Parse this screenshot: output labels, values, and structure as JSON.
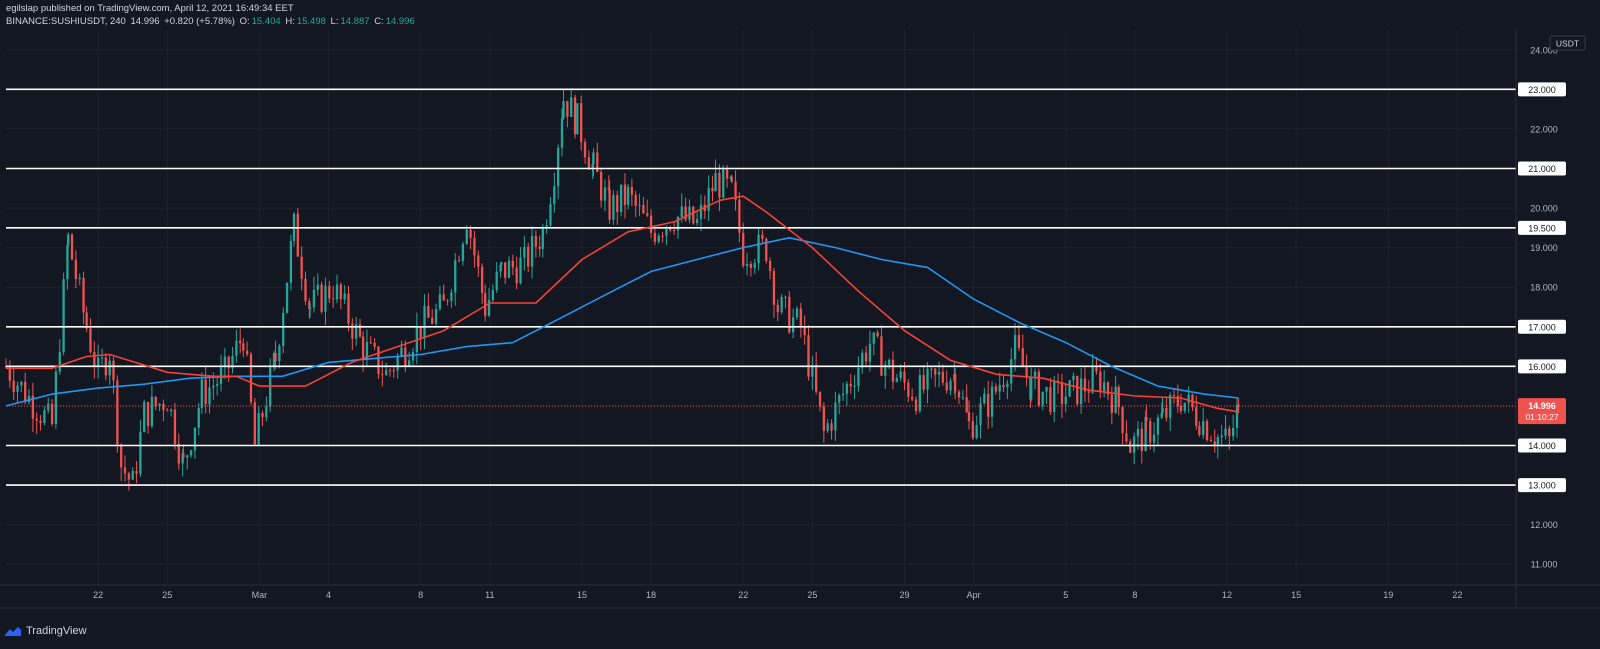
{
  "header": {
    "publisher_line": "egilslap published on TradingView.com, April 12, 2021 16:49:34 EET",
    "symbol": "BINANCE:SUSHIUSDT, 240",
    "last": "14.996",
    "change": "+0.820 (+5.78%)",
    "o_label": "O:",
    "o_value": "15.404",
    "h_label": "H:",
    "h_value": "15.498",
    "l_label": "L:",
    "l_value": "14.887",
    "c_label": "C:",
    "c_value": "14.996"
  },
  "price_scale": {
    "currency": "USDT",
    "current_price": "14.996",
    "countdown": "01:10:27"
  },
  "footer": {
    "brand": "TradingView"
  },
  "colors": {
    "background": "#131722",
    "up": "#26a69a",
    "down": "#ef5350",
    "ema_fast": "#f44336",
    "ema_slow": "#2196f3",
    "level_lines": "#ffffff",
    "grid": "#1e222d"
  },
  "chart_data": {
    "type": "candlestick",
    "symbol": "BINANCE:SUSHIUSDT",
    "interval": "240",
    "ylim": [
      10.5,
      24.5
    ],
    "y_ticks": [
      "11.000",
      "12.000",
      "13.000",
      "14.000",
      "15.000",
      "16.000",
      "17.000",
      "18.000",
      "19.000",
      "20.000",
      "21.000",
      "22.000",
      "23.000",
      "24.000"
    ],
    "x_ticks": [
      {
        "label": "22",
        "day": -7
      },
      {
        "label": "25",
        "day": -4
      },
      {
        "label": "Mar",
        "day": 0
      },
      {
        "label": "4",
        "day": 3
      },
      {
        "label": "8",
        "day": 7
      },
      {
        "label": "11",
        "day": 10
      },
      {
        "label": "15",
        "day": 14
      },
      {
        "label": "18",
        "day": 17
      },
      {
        "label": "22",
        "day": 21
      },
      {
        "label": "25",
        "day": 24
      },
      {
        "label": "29",
        "day": 28
      },
      {
        "label": "Apr",
        "day": 31
      },
      {
        "label": "5",
        "day": 35
      },
      {
        "label": "8",
        "day": 38
      },
      {
        "label": "12",
        "day": 42
      },
      {
        "label": "15",
        "day": 45
      },
      {
        "label": "19",
        "day": 49
      },
      {
        "label": "22",
        "day": 52
      }
    ],
    "xlim_days": [
      -11,
      54.5
    ],
    "horizontal_levels": [
      {
        "value": 23.0,
        "label": "23.000"
      },
      {
        "value": 21.0,
        "label": "21.000"
      },
      {
        "value": 19.5,
        "label": "19.500"
      },
      {
        "value": 17.0,
        "label": "17.000"
      },
      {
        "value": 16.0,
        "label": "16.000"
      },
      {
        "value": 14.0,
        "label": "14.000"
      },
      {
        "value": 13.0,
        "label": "13.000"
      }
    ],
    "current_price": 14.996,
    "price_path_anchors": [
      {
        "day": -11,
        "close": 16.0
      },
      {
        "day": -10,
        "close": 15.2
      },
      {
        "day": -9,
        "close": 14.5
      },
      {
        "day": -8.3,
        "close": 19.2
      },
      {
        "day": -7.5,
        "close": 17.0
      },
      {
        "day": -7,
        "close": 15.8
      },
      {
        "day": -6.5,
        "close": 16.4
      },
      {
        "day": -6,
        "close": 13.5
      },
      {
        "day": -5.5,
        "close": 13.0
      },
      {
        "day": -5,
        "close": 14.8
      },
      {
        "day": -4,
        "close": 15.2
      },
      {
        "day": -3.3,
        "close": 13.5
      },
      {
        "day": -2.5,
        "close": 15.3
      },
      {
        "day": -1.5,
        "close": 15.8
      },
      {
        "day": -0.7,
        "close": 16.8
      },
      {
        "day": -0.2,
        "close": 14.0
      },
      {
        "day": 0.7,
        "close": 16.2
      },
      {
        "day": 1.5,
        "close": 19.5
      },
      {
        "day": 2.2,
        "close": 17.5
      },
      {
        "day": 3.2,
        "close": 18.0
      },
      {
        "day": 4.5,
        "close": 16.5
      },
      {
        "day": 5.5,
        "close": 15.8
      },
      {
        "day": 7,
        "close": 17.0
      },
      {
        "day": 8,
        "close": 17.5
      },
      {
        "day": 9,
        "close": 19.8
      },
      {
        "day": 9.8,
        "close": 17.5
      },
      {
        "day": 10.5,
        "close": 18.4
      },
      {
        "day": 11.5,
        "close": 18.6
      },
      {
        "day": 12.3,
        "close": 19.4
      },
      {
        "day": 12.8,
        "close": 21.0
      },
      {
        "day": 13.2,
        "close": 22.8
      },
      {
        "day": 13.8,
        "close": 22.2
      },
      {
        "day": 14.5,
        "close": 21.0
      },
      {
        "day": 15.2,
        "close": 20.0
      },
      {
        "day": 16,
        "close": 20.3
      },
      {
        "day": 17,
        "close": 19.4
      },
      {
        "day": 18,
        "close": 19.8
      },
      {
        "day": 19,
        "close": 19.6
      },
      {
        "day": 19.8,
        "close": 20.7
      },
      {
        "day": 20.5,
        "close": 20.4
      },
      {
        "day": 21,
        "close": 18.9
      },
      {
        "day": 22,
        "close": 19.0
      },
      {
        "day": 22.5,
        "close": 17.5
      },
      {
        "day": 23.5,
        "close": 17.0
      },
      {
        "day": 24.5,
        "close": 14.3
      },
      {
        "day": 25.5,
        "close": 15.5
      },
      {
        "day": 26.5,
        "close": 16.6
      },
      {
        "day": 27.5,
        "close": 15.8
      },
      {
        "day": 28.5,
        "close": 15.3
      },
      {
        "day": 29.5,
        "close": 15.7
      },
      {
        "day": 30.2,
        "close": 15.8
      },
      {
        "day": 30.8,
        "close": 14.5
      },
      {
        "day": 31.8,
        "close": 15.2
      },
      {
        "day": 32.8,
        "close": 16.4
      },
      {
        "day": 33.5,
        "close": 15.5
      },
      {
        "day": 34.5,
        "close": 15.2
      },
      {
        "day": 35.5,
        "close": 15.4
      },
      {
        "day": 36.5,
        "close": 15.7
      },
      {
        "day": 37.3,
        "close": 15.0
      },
      {
        "day": 37.8,
        "close": 14.0
      },
      {
        "day": 38.5,
        "close": 14.3
      },
      {
        "day": 39.2,
        "close": 14.7
      },
      {
        "day": 40,
        "close": 15.2
      },
      {
        "day": 40.8,
        "close": 14.7
      },
      {
        "day": 41.6,
        "close": 14.2
      },
      {
        "day": 42.1,
        "close": 14.1
      },
      {
        "day": 42.5,
        "close": 14.996
      }
    ],
    "ema_fast_points": [
      {
        "day": -11,
        "value": 15.95
      },
      {
        "day": -9,
        "value": 15.95
      },
      {
        "day": -7.5,
        "value": 16.25
      },
      {
        "day": -6.5,
        "value": 16.3
      },
      {
        "day": -4,
        "value": 15.85
      },
      {
        "day": -2,
        "value": 15.75
      },
      {
        "day": -1,
        "value": 15.75
      },
      {
        "day": 0,
        "value": 15.5
      },
      {
        "day": 2,
        "value": 15.5
      },
      {
        "day": 4,
        "value": 16.1
      },
      {
        "day": 6,
        "value": 16.5
      },
      {
        "day": 8,
        "value": 16.9
      },
      {
        "day": 10,
        "value": 17.6
      },
      {
        "day": 12,
        "value": 17.6
      },
      {
        "day": 14,
        "value": 18.7
      },
      {
        "day": 16,
        "value": 19.4
      },
      {
        "day": 18,
        "value": 19.65
      },
      {
        "day": 20,
        "value": 20.2
      },
      {
        "day": 21,
        "value": 20.3
      },
      {
        "day": 22,
        "value": 19.9
      },
      {
        "day": 24,
        "value": 19.0
      },
      {
        "day": 26,
        "value": 17.9
      },
      {
        "day": 28,
        "value": 16.9
      },
      {
        "day": 30,
        "value": 16.15
      },
      {
        "day": 32,
        "value": 15.8
      },
      {
        "day": 34,
        "value": 15.7
      },
      {
        "day": 36,
        "value": 15.4
      },
      {
        "day": 38,
        "value": 15.25
      },
      {
        "day": 40,
        "value": 15.2
      },
      {
        "day": 41.5,
        "value": 14.95
      },
      {
        "day": 42.5,
        "value": 14.85
      }
    ],
    "ema_slow_points": [
      {
        "day": -11,
        "value": 15.0
      },
      {
        "day": -9,
        "value": 15.3
      },
      {
        "day": -7,
        "value": 15.45
      },
      {
        "day": -5,
        "value": 15.55
      },
      {
        "day": -3,
        "value": 15.7
      },
      {
        "day": -1,
        "value": 15.75
      },
      {
        "day": 1,
        "value": 15.75
      },
      {
        "day": 3,
        "value": 16.1
      },
      {
        "day": 5,
        "value": 16.2
      },
      {
        "day": 7,
        "value": 16.3
      },
      {
        "day": 9,
        "value": 16.5
      },
      {
        "day": 11,
        "value": 16.6
      },
      {
        "day": 13,
        "value": 17.2
      },
      {
        "day": 15,
        "value": 17.8
      },
      {
        "day": 17,
        "value": 18.4
      },
      {
        "day": 19,
        "value": 18.7
      },
      {
        "day": 21,
        "value": 19.0
      },
      {
        "day": 23,
        "value": 19.25
      },
      {
        "day": 25,
        "value": 19.0
      },
      {
        "day": 27,
        "value": 18.7
      },
      {
        "day": 29,
        "value": 18.5
      },
      {
        "day": 31,
        "value": 17.7
      },
      {
        "day": 33,
        "value": 17.1
      },
      {
        "day": 35,
        "value": 16.6
      },
      {
        "day": 37,
        "value": 16.0
      },
      {
        "day": 39,
        "value": 15.5
      },
      {
        "day": 41,
        "value": 15.3
      },
      {
        "day": 42.5,
        "value": 15.2
      }
    ]
  }
}
